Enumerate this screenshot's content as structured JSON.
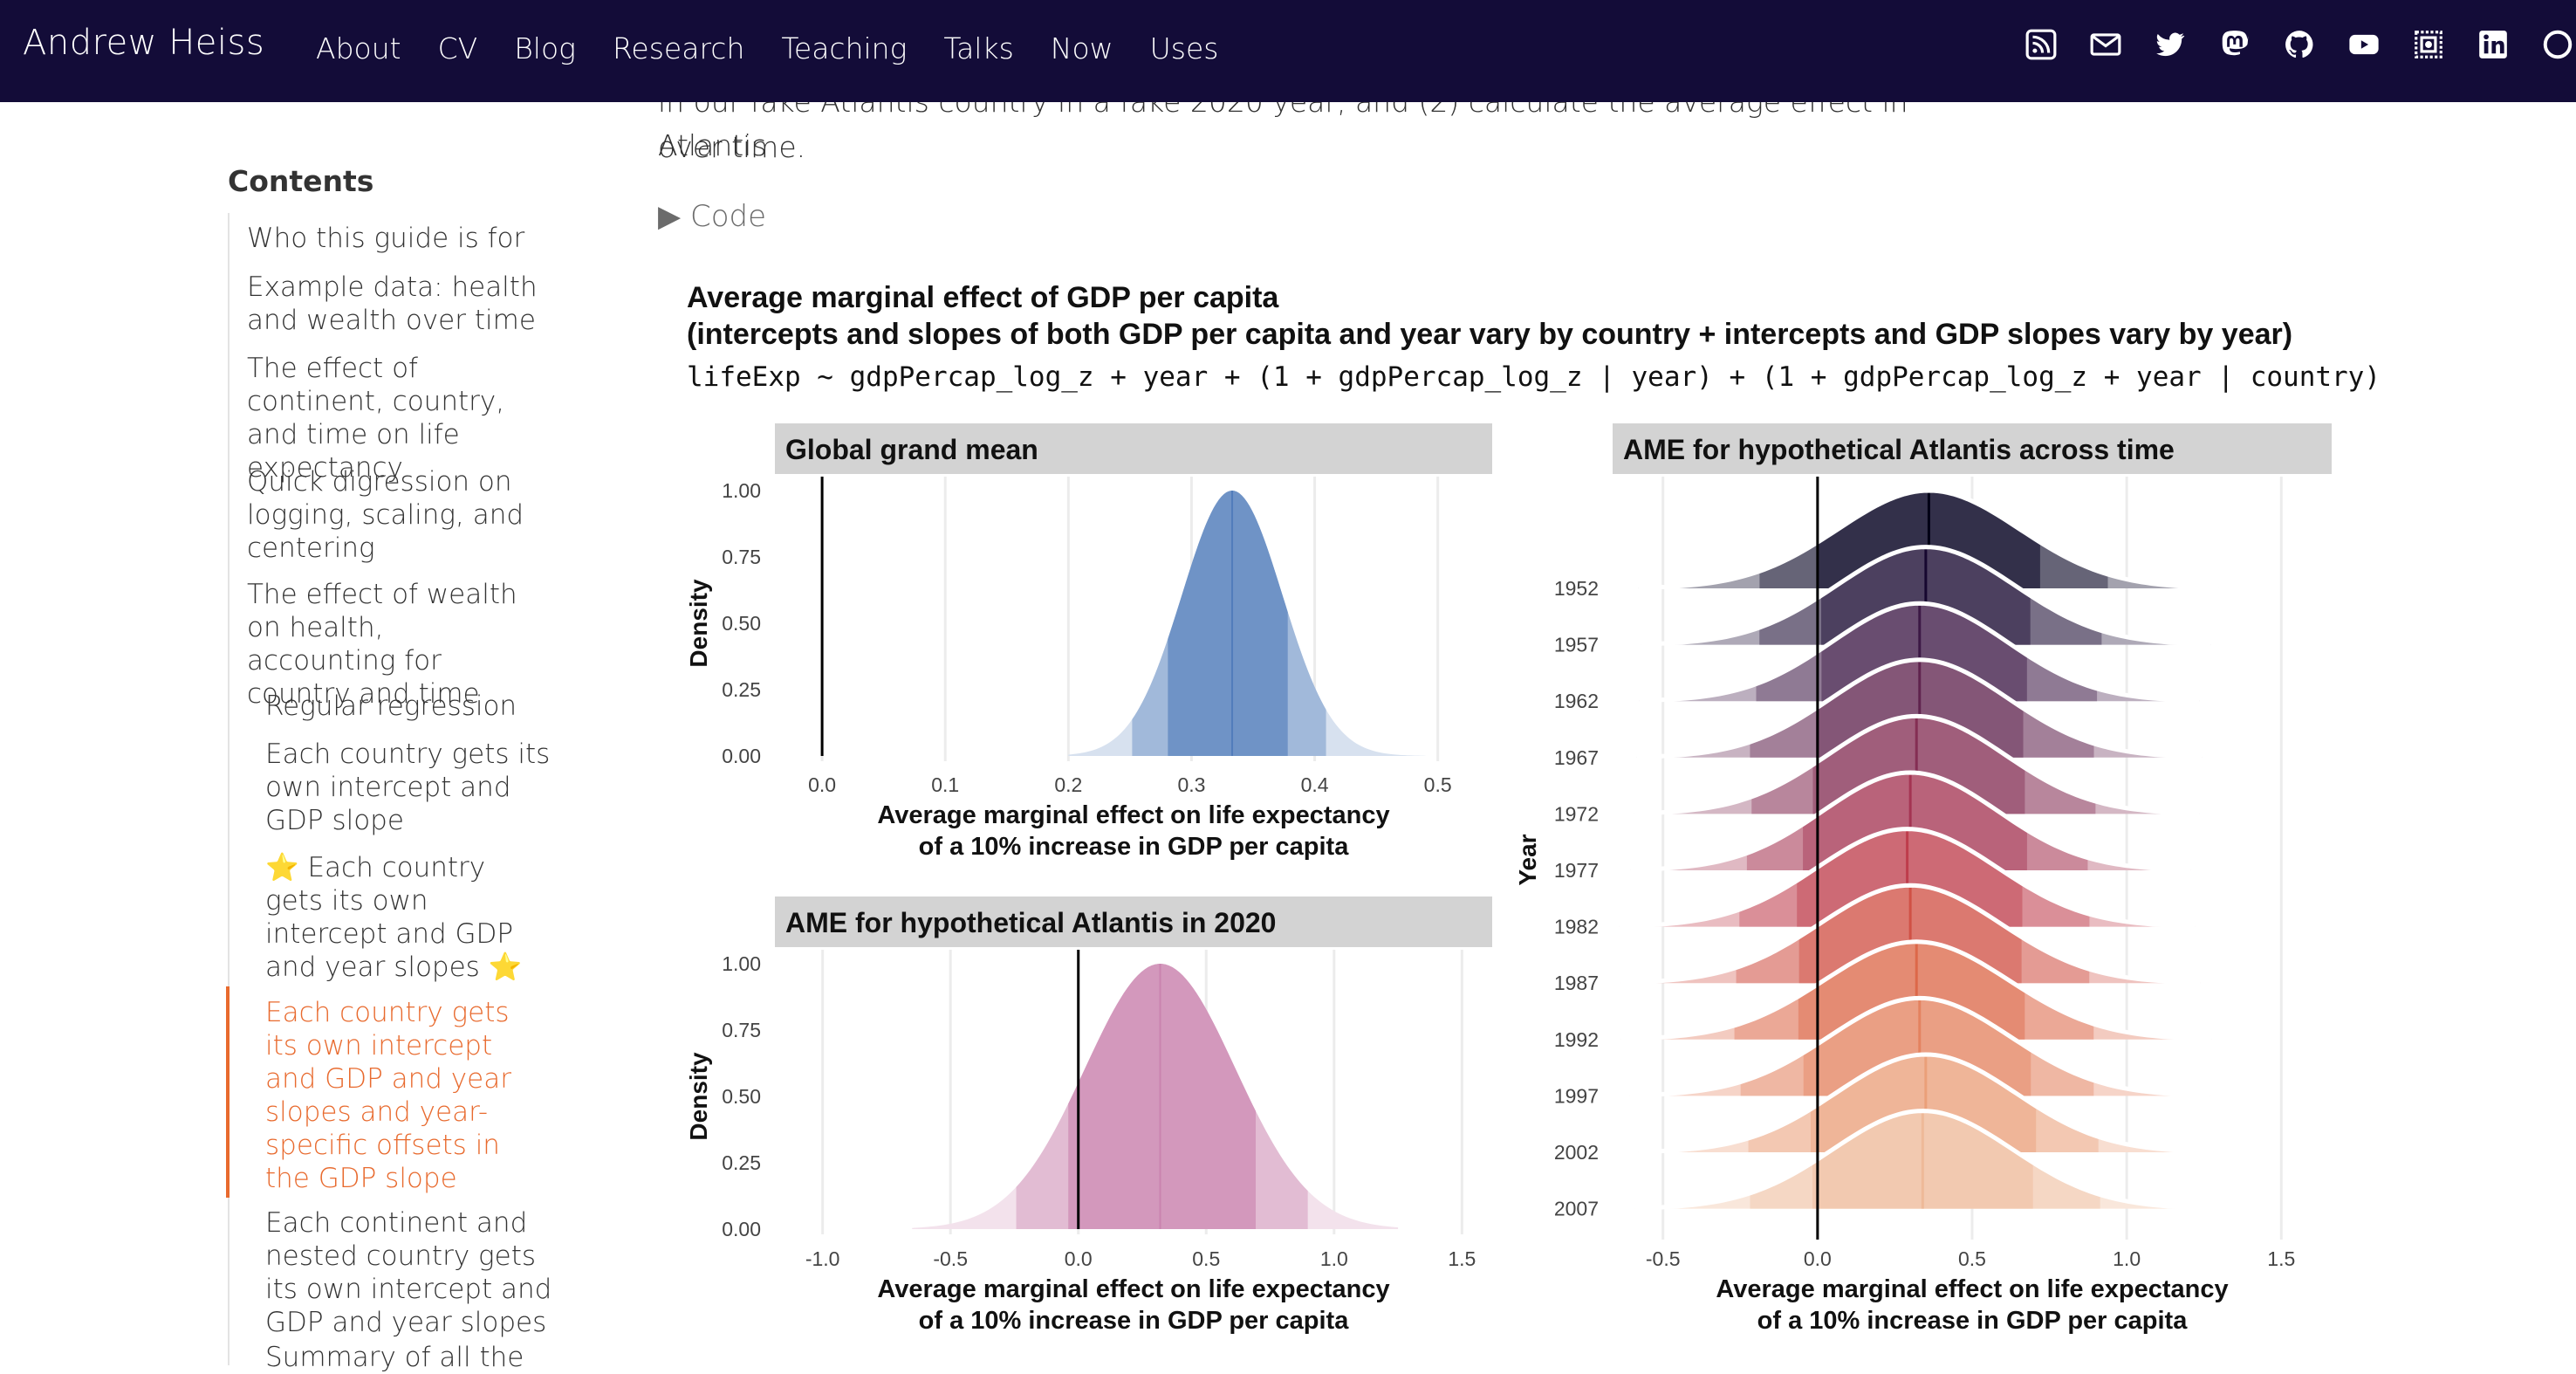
{
  "nav": {
    "brand": "Andrew Heiss",
    "links": [
      "About",
      "CV",
      "Blog",
      "Research",
      "Teaching",
      "Talks",
      "Now",
      "Uses"
    ],
    "icons": [
      "rss-icon",
      "email-icon",
      "twitter-icon",
      "mastodon-icon",
      "github-icon",
      "youtube-icon",
      "stamp-icon",
      "linkedin-icon",
      "circle-icon"
    ]
  },
  "article": {
    "line1": "in our fake Atlantis country in a fake 2020 year, and (2) calculate the average effect in Atlantis",
    "line2": "over time.",
    "code_toggle": "▶ Code"
  },
  "toc": {
    "title": "Contents",
    "items": [
      {
        "label": "Who this guide is for",
        "indent": 0
      },
      {
        "label": "Example data: health and wealth over time",
        "indent": 0
      },
      {
        "label": "The effect of continent, country, and time on life expectancy",
        "indent": 0
      },
      {
        "label": "Quick digression on logging, scaling, and centering",
        "indent": 0
      },
      {
        "label": "The effect of wealth on health, accounting for country and time",
        "indent": 0
      },
      {
        "label": "Regular regression",
        "indent": 1
      },
      {
        "label": "Each country gets its own intercept and GDP slope",
        "indent": 1
      },
      {
        "label": "⭐ Each country gets its own intercept and GDP and year slopes ⭐",
        "indent": 1
      },
      {
        "label": "Each country gets its own intercept and GDP and year slopes and year-specific offsets in the GDP slope",
        "indent": 1,
        "active": true
      },
      {
        "label": "Each continent and nested country gets its own intercept and GDP and year slopes",
        "indent": 1
      },
      {
        "label": "Summary of all the",
        "indent": 1
      }
    ]
  },
  "figure": {
    "title_line1": "Average marginal effect of GDP per capita",
    "title_line2": "(intercepts and slopes of both GDP per capita and year vary by country + intercepts and GDP slopes vary by year)",
    "formula": "lifeExp ~ gdpPercap_log_z + year + (1 + gdpPercap_log_z | year) + (1 + gdpPercap_log_z + year | country)",
    "xlabel_line1": "Average marginal effect on life expectancy",
    "xlabel_line2": "of a 10% increase in GDP per capita"
  },
  "chart_data": [
    {
      "type": "area",
      "title": "Global grand mean",
      "xlabel": "Average marginal effect on life expectancy of a 10% increase in GDP per capita",
      "ylabel": "Density",
      "x_ticks": [
        "0.0",
        "0.1",
        "0.2",
        "0.3",
        "0.4",
        "0.5"
      ],
      "y_ticks": [
        "0.00",
        "0.25",
        "0.50",
        "0.75",
        "1.00"
      ],
      "xlim": [
        -0.01,
        0.53
      ],
      "ylim": [
        0,
        1
      ],
      "median": 0.333,
      "interval_66": [
        0.28,
        0.38
      ],
      "interval_95": [
        0.25,
        0.41
      ],
      "range": [
        0.2,
        0.49
      ],
      "reference_line": 0,
      "color": "#6f93c6"
    },
    {
      "type": "area",
      "title": "AME for hypothetical Atlantis in 2020",
      "xlabel": "Average marginal effect on life expectancy of a 10% increase in GDP per capita",
      "ylabel": "Density",
      "x_ticks": [
        "-1.0",
        "-0.5",
        "0.0",
        "0.5",
        "1.0",
        "1.5"
      ],
      "y_ticks": [
        "0.00",
        "0.25",
        "0.50",
        "0.75",
        "1.00"
      ],
      "xlim": [
        -1.05,
        1.55
      ],
      "ylim": [
        0,
        1
      ],
      "median": 0.32,
      "interval_66": [
        -0.05,
        0.7
      ],
      "interval_95": [
        -0.25,
        0.9
      ],
      "range": [
        -0.65,
        1.25
      ],
      "reference_line": 0,
      "color": "#d398bc"
    },
    {
      "type": "area",
      "title": "AME for hypothetical Atlantis across time",
      "xlabel": "Average marginal effect on life expectancy of a 10% increase in GDP per capita",
      "ylabel": "Year",
      "x_ticks": [
        "-0.5",
        "0.0",
        "0.5",
        "1.0",
        "1.5"
      ],
      "xlim": [
        -0.55,
        1.55
      ],
      "reference_line": 0,
      "series": [
        {
          "name": "1952",
          "median": 0.36,
          "interval_66": [
            0.0,
            0.72
          ],
          "interval_95": [
            -0.2,
            0.95
          ],
          "color": "#33304a"
        },
        {
          "name": "1957",
          "median": 0.35,
          "interval_66": [
            0.0,
            0.7
          ],
          "interval_95": [
            -0.2,
            0.93
          ],
          "color": "#4c405f"
        },
        {
          "name": "1962",
          "median": 0.33,
          "interval_66": [
            0.0,
            0.69
          ],
          "interval_95": [
            -0.2,
            0.91
          ],
          "color": "#694d70"
        },
        {
          "name": "1967",
          "median": 0.33,
          "interval_66": [
            -0.01,
            0.68
          ],
          "interval_95": [
            -0.22,
            0.9
          ],
          "color": "#845677"
        },
        {
          "name": "1972",
          "median": 0.32,
          "interval_66": [
            -0.02,
            0.68
          ],
          "interval_95": [
            -0.22,
            0.9
          ],
          "color": "#a05e7b"
        },
        {
          "name": "1977",
          "median": 0.3,
          "interval_66": [
            -0.05,
            0.68
          ],
          "interval_95": [
            -0.23,
            0.88
          ],
          "color": "#b9637a"
        },
        {
          "name": "1982",
          "median": 0.29,
          "interval_66": [
            -0.07,
            0.67
          ],
          "interval_95": [
            -0.26,
            0.88
          ],
          "color": "#cd6a75"
        },
        {
          "name": "1987",
          "median": 0.3,
          "interval_66": [
            -0.07,
            0.67
          ],
          "interval_95": [
            -0.27,
            0.88
          ],
          "color": "#db7970"
        },
        {
          "name": "1992",
          "median": 0.32,
          "interval_66": [
            -0.07,
            0.68
          ],
          "interval_95": [
            -0.27,
            0.9
          ],
          "color": "#e48b73"
        },
        {
          "name": "1997",
          "median": 0.33,
          "interval_66": [
            -0.05,
            0.69
          ],
          "interval_95": [
            -0.25,
            0.9
          ],
          "color": "#ea9f84"
        },
        {
          "name": "2002",
          "median": 0.35,
          "interval_66": [
            -0.03,
            0.71
          ],
          "interval_95": [
            -0.23,
            0.91
          ],
          "color": "#efb598"
        },
        {
          "name": "2007",
          "median": 0.34,
          "interval_66": [
            -0.02,
            0.7
          ],
          "interval_95": [
            -0.22,
            0.92
          ],
          "color": "#f2c9b0"
        }
      ]
    }
  ]
}
